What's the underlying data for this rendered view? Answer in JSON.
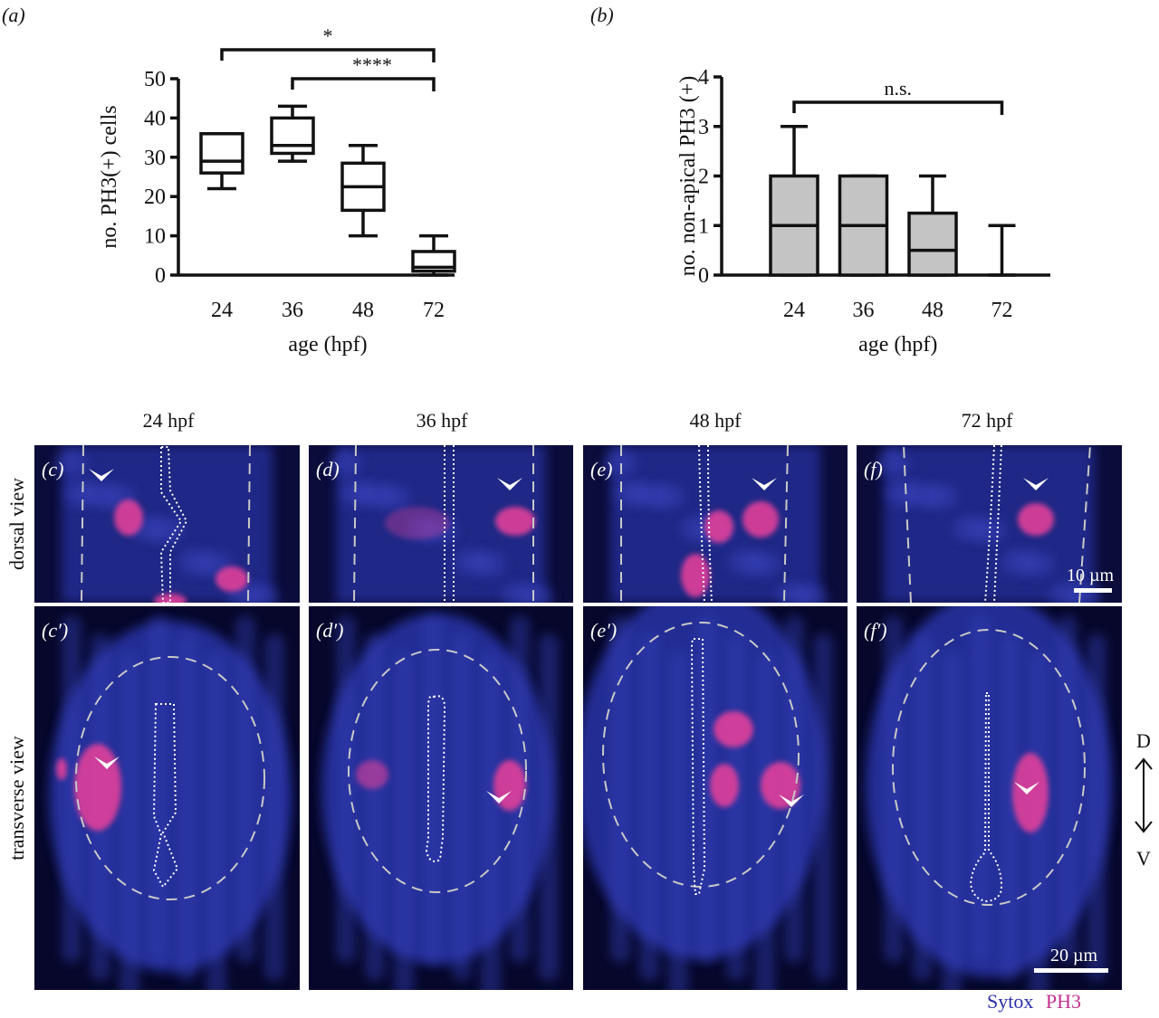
{
  "chart_data": [
    {
      "panel": "(a)",
      "type": "box",
      "ylabel": "no. PH3(+) cells",
      "xlabel": "age (hpf)",
      "categories": [
        "24",
        "36",
        "48",
        "72"
      ],
      "ylim": [
        0,
        50
      ],
      "yticks": [
        "0",
        "10",
        "20",
        "30",
        "40",
        "50"
      ],
      "boxes": [
        {
          "category": "24",
          "min": 22,
          "q1": 26,
          "median": 29,
          "q3": 36,
          "max": 36
        },
        {
          "category": "36",
          "min": 29,
          "q1": 31,
          "median": 33,
          "q3": 40,
          "max": 43
        },
        {
          "category": "48",
          "min": 10,
          "q1": 16.5,
          "median": 22.5,
          "q3": 28.5,
          "max": 33
        },
        {
          "category": "72",
          "min": 0,
          "q1": 1,
          "median": 2,
          "q3": 6,
          "max": 10
        }
      ],
      "significance": [
        {
          "from": "24",
          "to": "72",
          "label": "*"
        },
        {
          "from": "36",
          "to": "72",
          "label": "****"
        }
      ]
    },
    {
      "panel": "(b)",
      "type": "box",
      "ylabel": "no. non-apical PH3 (+)",
      "xlabel": "age (hpf)",
      "categories": [
        "24",
        "36",
        "48",
        "72"
      ],
      "ylim": [
        0,
        4
      ],
      "yticks": [
        "0",
        "1",
        "2",
        "3",
        "4"
      ],
      "boxes": [
        {
          "category": "24",
          "min": 0,
          "q1": 0,
          "median": 1,
          "q3": 2,
          "max": 3
        },
        {
          "category": "36",
          "min": 0,
          "q1": 0,
          "median": 1,
          "q3": 2,
          "max": 2
        },
        {
          "category": "48",
          "min": 0,
          "q1": 0,
          "median": 0.5,
          "q3": 1.25,
          "max": 2
        },
        {
          "category": "72",
          "min": 0,
          "q1": 0,
          "median": 0,
          "q3": 0,
          "max": 1
        }
      ],
      "box_fill": "#c4c4c4",
      "significance": [
        {
          "from": "24",
          "to": "72",
          "label": "n.s."
        }
      ]
    }
  ],
  "panels": {
    "a_label": "(a)",
    "b_label": "(b)"
  },
  "micrographs": {
    "columns": [
      "24 hpf",
      "36 hpf",
      "48 hpf",
      "72 hpf"
    ],
    "row_labels": [
      "dorsal view",
      "transverse view"
    ],
    "dorsal_labels": [
      "(c)",
      "(d)",
      "(e)",
      "(f)"
    ],
    "transverse_labels": [
      "(c′)",
      "(d′)",
      "(e′)",
      "(f′)"
    ],
    "scalebar_dorsal": "10 µm",
    "scalebar_transverse": "20 µm",
    "axis_top": "D",
    "axis_bottom": "V",
    "legend": {
      "sytox": "Sytox",
      "ph3": "PH3"
    },
    "colors": {
      "sytox": "#2b2fa8",
      "ph3": "#c0308f",
      "tissue": "#2a3aa0",
      "background": "#07082a"
    }
  }
}
